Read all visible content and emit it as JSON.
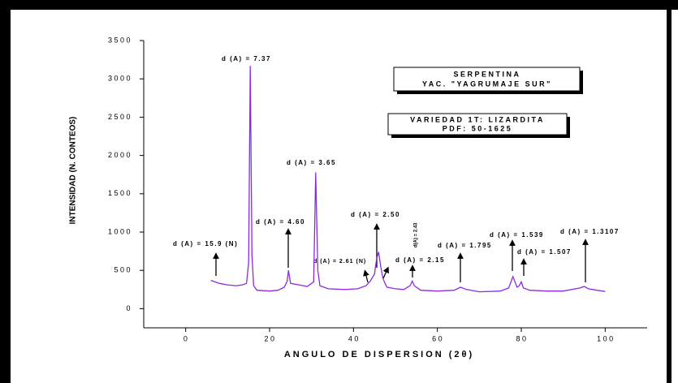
{
  "chart_data": {
    "type": "line",
    "xlabel": "ANGULO DE DISPERSION (2θ)",
    "ylabel": "INTENSIDAD (N. CONTEOS)",
    "xlim": [
      -10,
      110
    ],
    "ylim": [
      -250,
      3500
    ],
    "xticks": [
      0,
      20,
      40,
      60,
      80,
      100
    ],
    "yticks": [
      0,
      500,
      1000,
      1500,
      2000,
      2500,
      3000,
      3500
    ],
    "grid": false,
    "series": [
      {
        "color": "#8a2be2",
        "x": [
          6,
          7,
          8,
          10,
          12,
          13.5,
          14.5,
          15,
          15.4,
          15.8,
          16.2,
          17,
          20,
          22,
          23.5,
          24.2,
          24.5,
          25,
          27,
          29,
          30.5,
          31,
          31.5,
          32,
          34,
          38,
          41,
          43,
          44,
          45,
          45.5,
          46,
          46.5,
          47,
          47.5,
          48,
          50,
          52,
          53.5,
          54,
          54.5,
          56,
          60,
          64,
          65.5,
          67,
          70,
          75,
          77,
          78,
          79,
          79.5,
          80,
          80.5,
          82,
          86,
          90,
          94,
          95,
          96,
          98,
          100
        ],
        "values": [
          370,
          350,
          330,
          310,
          300,
          310,
          330,
          600,
          3170,
          700,
          300,
          240,
          230,
          240,
          280,
          360,
          500,
          330,
          310,
          290,
          350,
          1780,
          500,
          300,
          260,
          250,
          260,
          300,
          360,
          450,
          650,
          740,
          550,
          400,
          330,
          280,
          260,
          250,
          300,
          360,
          300,
          240,
          230,
          240,
          280,
          250,
          220,
          230,
          270,
          420,
          280,
          300,
          350,
          270,
          240,
          230,
          230,
          270,
          290,
          260,
          240,
          225
        ]
      }
    ],
    "annotations": [
      "d (A) = 7.37",
      "d (A) = 3.65",
      "d (A) = 4.60",
      "d (A) = 15.9 (N)",
      "d (A) = 2.61 (N)",
      "d (A) = 2.50",
      "d(A) = 2.43",
      "d (A) = 2.15",
      "d (A) = 1.795",
      "d (A) = 1.539",
      "d (A) = 1.507",
      "d (A) = 1.3107"
    ],
    "boxes": [
      [
        "SERPENTINA",
        "YAC. \"YAGRUMAJE SUR\""
      ],
      [
        "VARIEDAD 1T: LIZARDITA",
        "PDF: 50-1625"
      ]
    ]
  }
}
